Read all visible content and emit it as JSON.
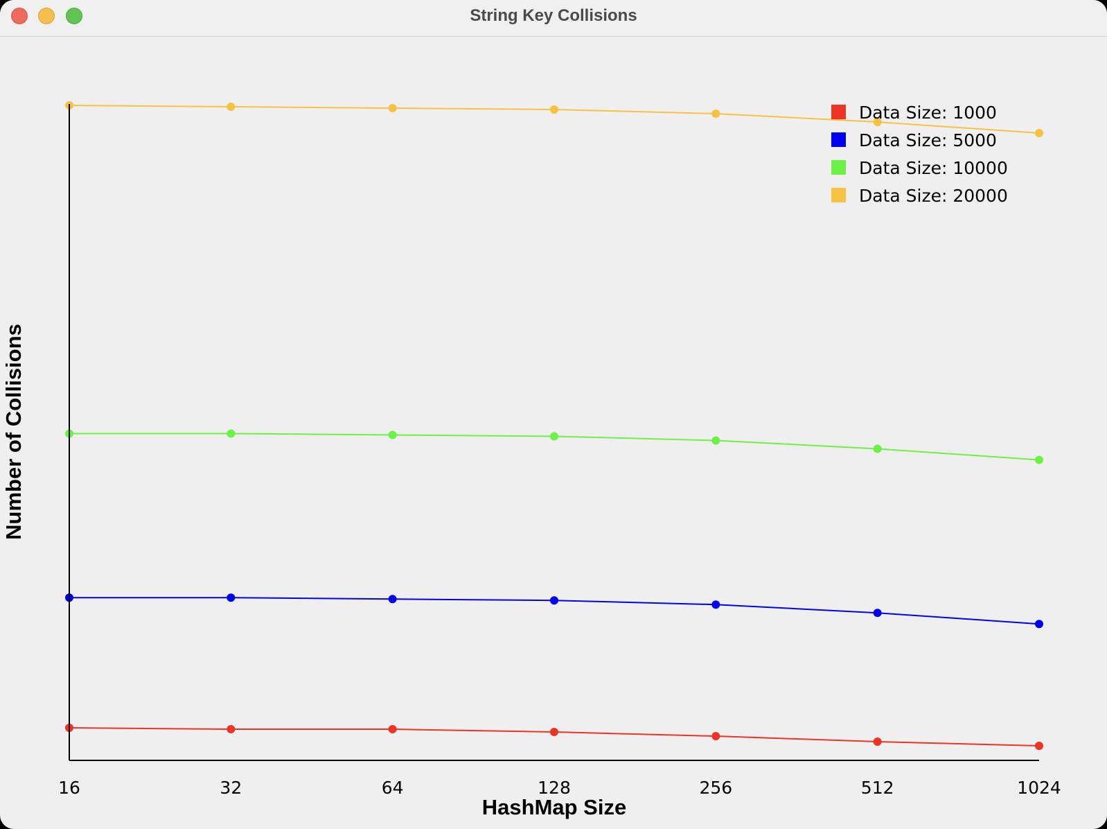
{
  "window": {
    "title": "String Key Collisions"
  },
  "chart_data": {
    "type": "line",
    "title": "",
    "xlabel": "HashMap Size",
    "ylabel": "Number of Collisions",
    "x_scale": "log2",
    "categories": [
      "16",
      "32",
      "64",
      "128",
      "256",
      "512",
      "1024"
    ],
    "y_axis_tick_labels": false,
    "grid": false,
    "legend_placement": "top-right",
    "series": [
      {
        "name": "Data Size: 1000",
        "color": "#ee3224",
        "values": [
          47,
          45,
          45,
          41,
          35,
          27,
          21
        ]
      },
      {
        "name": "Data Size: 5000",
        "color": "#0000ee",
        "values": [
          235,
          235,
          233,
          231,
          225,
          213,
          197
        ]
      },
      {
        "name": "Data Size: 10000",
        "color": "#6cf247",
        "values": [
          472,
          472,
          470,
          468,
          462,
          450,
          434
        ]
      },
      {
        "name": "Data Size: 20000",
        "color": "#f7c242",
        "values": [
          946,
          944,
          942,
          940,
          934,
          922,
          906
        ]
      }
    ],
    "ylim": [
      0,
      948
    ]
  }
}
